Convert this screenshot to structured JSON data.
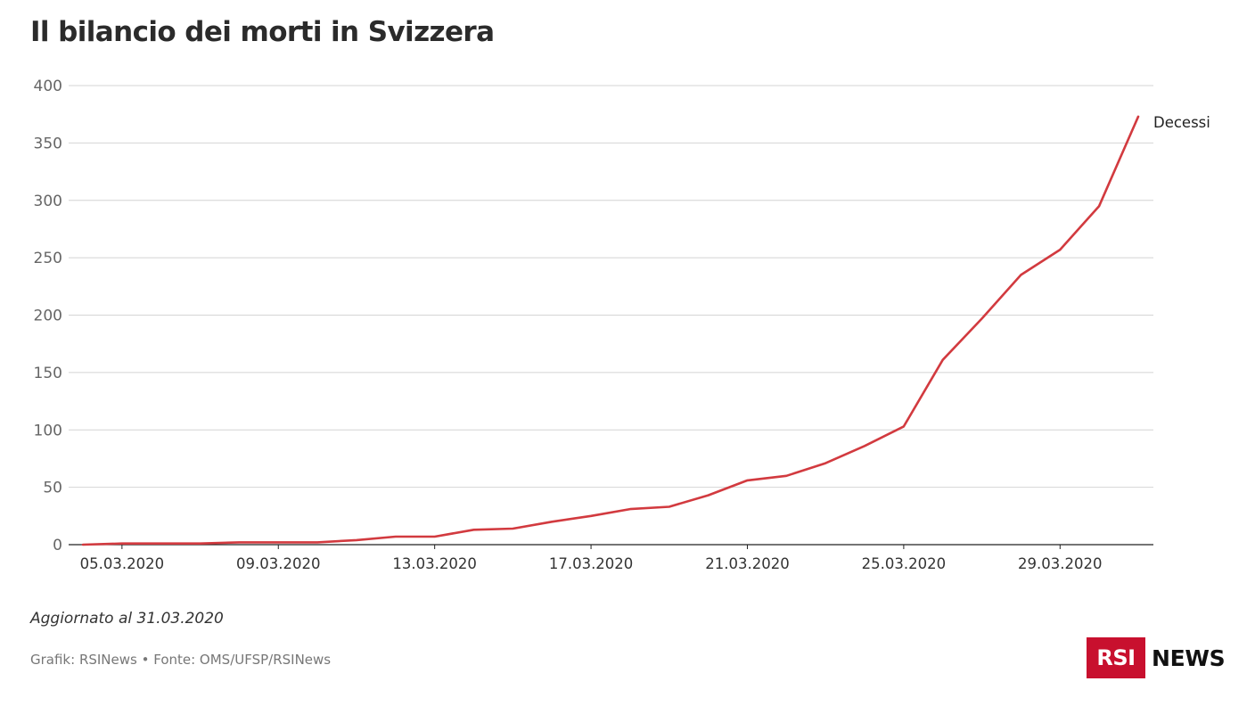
{
  "title": "Il bilancio dei morti in Svizzera",
  "updated": "Aggiornato al 31.03.2020",
  "source": "Grafik: RSINews • Fonte: OMS/UFSP/RSINews",
  "logo": {
    "box": "RSI",
    "text": "NEWS"
  },
  "colors": {
    "line": "#d23a3f",
    "grid": "#d4d4d4",
    "axis": "#222222",
    "logo": "#c8102e"
  },
  "chart_data": {
    "type": "line",
    "title": "Il bilancio dei morti in Svizzera",
    "xlabel": "",
    "ylabel": "",
    "ylim": [
      0,
      400
    ],
    "yticks": [
      "0",
      "50",
      "100",
      "150",
      "200",
      "250",
      "300",
      "350",
      "400"
    ],
    "xticks": [
      "05.03.2020",
      "09.03.2020",
      "13.03.2020",
      "17.03.2020",
      "21.03.2020",
      "25.03.2020",
      "29.03.2020"
    ],
    "x": [
      "04.03.2020",
      "05.03.2020",
      "06.03.2020",
      "07.03.2020",
      "08.03.2020",
      "09.03.2020",
      "10.03.2020",
      "11.03.2020",
      "12.03.2020",
      "13.03.2020",
      "14.03.2020",
      "15.03.2020",
      "16.03.2020",
      "17.03.2020",
      "18.03.2020",
      "19.03.2020",
      "20.03.2020",
      "21.03.2020",
      "22.03.2020",
      "23.03.2020",
      "24.03.2020",
      "25.03.2020",
      "26.03.2020",
      "27.03.2020",
      "28.03.2020",
      "29.03.2020",
      "30.03.2020",
      "31.03.2020"
    ],
    "grid": true,
    "legend": "end-of-line label",
    "series": [
      {
        "name": "Decessi",
        "values": [
          0,
          1,
          1,
          1,
          2,
          2,
          2,
          4,
          7,
          7,
          13,
          14,
          20,
          25,
          31,
          33,
          43,
          56,
          60,
          71,
          86,
          103,
          161,
          197,
          235,
          257,
          295,
          373
        ]
      }
    ]
  }
}
